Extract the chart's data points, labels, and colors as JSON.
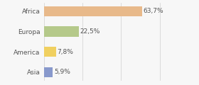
{
  "categories": [
    "Africa",
    "Europa",
    "America",
    "Asia"
  ],
  "values": [
    63.7,
    22.5,
    7.8,
    5.9
  ],
  "labels": [
    "63,7%",
    "22,5%",
    "7,8%",
    "5,9%"
  ],
  "bar_colors": [
    "#e8b98a",
    "#b5c98a",
    "#f0d060",
    "#8899cc"
  ],
  "background_color": "#f7f7f7",
  "xlim": [
    0,
    85
  ],
  "label_fontsize": 6.5,
  "tick_fontsize": 6.5,
  "bar_height": 0.5,
  "grid_ticks": [
    0,
    25,
    50,
    75
  ],
  "grid_color": "#d0d0d0",
  "text_color": "#555555"
}
